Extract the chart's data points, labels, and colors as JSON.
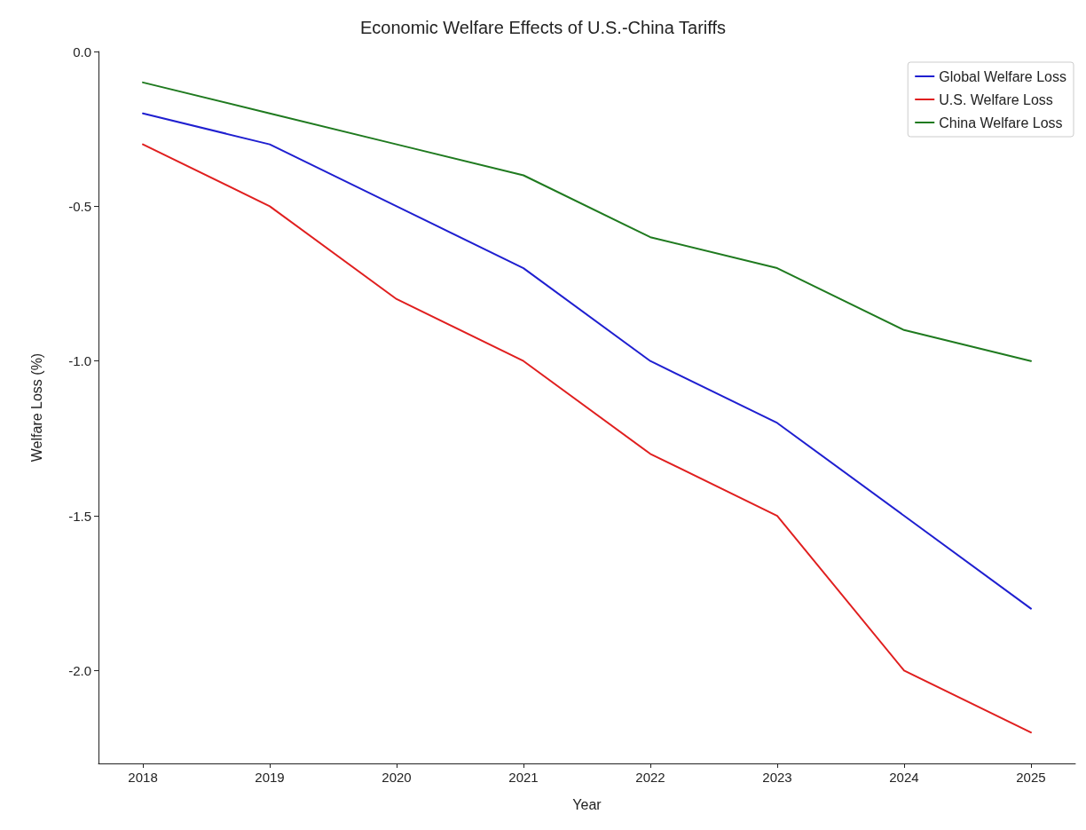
{
  "chart_data": {
    "type": "line",
    "title": "Economic Welfare Effects of U.S.-China Tariffs",
    "xlabel": "Year",
    "ylabel": "Welfare Loss (%)",
    "x": [
      2018,
      2019,
      2020,
      2021,
      2022,
      2023,
      2024,
      2025
    ],
    "series": [
      {
        "name": "Global Welfare Loss",
        "color": "#1f1fd0",
        "values": [
          -0.2,
          -0.3,
          -0.5,
          -0.7,
          -1.0,
          -1.2,
          -1.5,
          -1.8
        ]
      },
      {
        "name": "U.S. Welfare Loss",
        "color": "#e01f1f",
        "values": [
          -0.3,
          -0.5,
          -0.8,
          -1.0,
          -1.3,
          -1.5,
          -2.0,
          -2.2
        ]
      },
      {
        "name": "China Welfare Loss",
        "color": "#1f7a1f",
        "values": [
          -0.1,
          -0.2,
          -0.3,
          -0.4,
          -0.6,
          -0.7,
          -0.9,
          -1.0
        ]
      }
    ],
    "xlim": [
      2017.65,
      2025.35
    ],
    "xticks": [
      2018,
      2019,
      2020,
      2021,
      2022,
      2023,
      2024,
      2025
    ],
    "ylim": [
      -2.3,
      0
    ],
    "yticks": [
      {
        "value": 0,
        "label": "0.0"
      },
      {
        "value": -0.5,
        "label": "-0.5"
      },
      {
        "value": -1,
        "label": "-1.0"
      },
      {
        "value": -1.5,
        "label": "-1.5"
      },
      {
        "value": -2,
        "label": "-2.0"
      }
    ],
    "grid": false,
    "legend": "top right",
    "marker": "none",
    "line_style": "solid"
  }
}
